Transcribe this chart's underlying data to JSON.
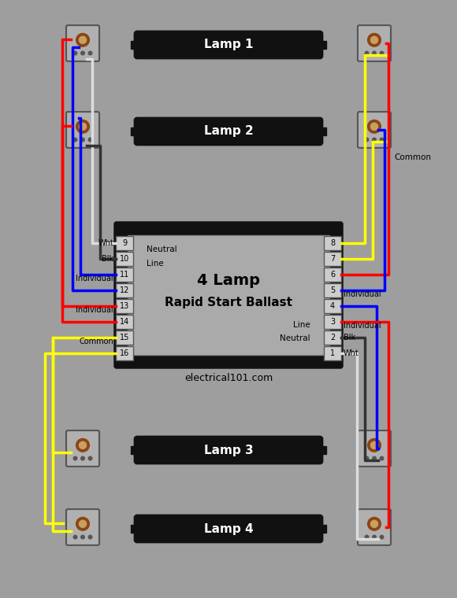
{
  "bg_color": "#9e9e9e",
  "fig_w": 5.8,
  "fig_h": 7.6,
  "title": "electrical101.com",
  "ballast_label1": "4 Lamp",
  "ballast_label2": "Rapid Start Ballast",
  "lamp_labels": [
    "Lamp 1",
    "Lamp 2",
    "Lamp 3",
    "Lamp 4"
  ],
  "left_pins": [
    "9",
    "10",
    "11",
    "12",
    "13",
    "14",
    "15",
    "16"
  ],
  "right_pins": [
    "8",
    "7",
    "6",
    "5",
    "4",
    "3",
    "2",
    "1"
  ],
  "left_labels": [
    "Neutral",
    "Line",
    "",
    "",
    "",
    "",
    "",
    ""
  ],
  "right_labels": [
    "",
    "",
    "",
    "",
    "",
    "",
    "Line",
    "Neutral"
  ],
  "left_side_labels": [
    "Wht",
    "Blk",
    "Individual",
    "Individual",
    "Common",
    "",
    "",
    ""
  ],
  "right_side_labels": [
    "",
    "",
    "Individual",
    "Individual",
    "Blk",
    "Wht",
    "",
    ""
  ],
  "colors": {
    "red": "#ff0000",
    "blue": "#0000ff",
    "yellow": "#ffff00",
    "white": "#ffffff",
    "black": "#000000",
    "dark_gray": "#333333",
    "ballast_face": "#aaaaaa",
    "ballast_border": "#111111",
    "pin_bg": "#cccccc",
    "lamp_black": "#111111",
    "lamp_label_color": "#ffffff"
  }
}
